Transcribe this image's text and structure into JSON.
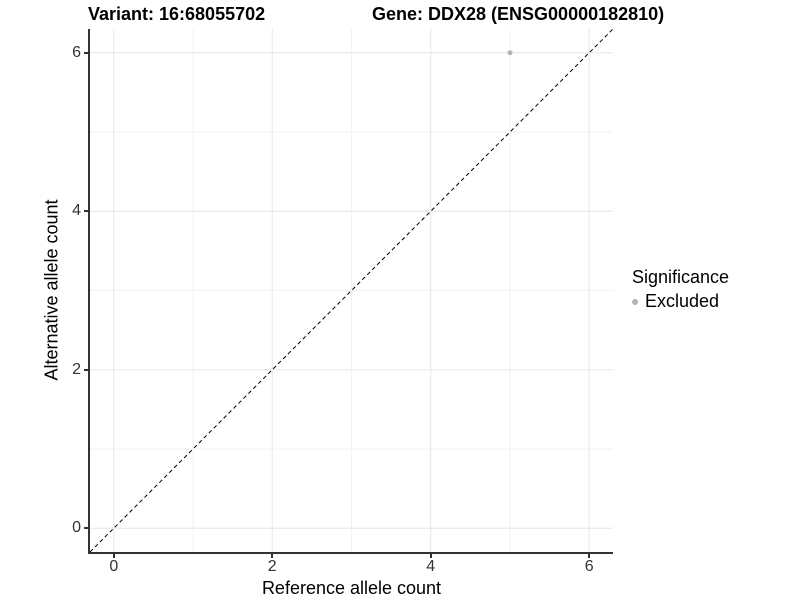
{
  "header": {
    "variant_title": "Variant: 16:68055702",
    "gene_title": "Gene: DDX28 (ENSG00000182810)"
  },
  "chart_data": {
    "type": "scatter",
    "xlabel": "Reference allele count",
    "ylabel": "Alternative allele count",
    "xlim": [
      -0.3,
      6.3
    ],
    "ylim": [
      -0.3,
      6.3
    ],
    "x_ticks": [
      0,
      2,
      4,
      6
    ],
    "y_ticks": [
      0,
      2,
      4,
      6
    ],
    "x_minor_ticks": [
      1,
      3,
      5
    ],
    "y_minor_ticks": [
      1,
      3,
      5
    ],
    "grid": "major and minor gridlines, light gray on white panel",
    "points": [
      {
        "x": 5,
        "y": 6,
        "series": "Excluded"
      }
    ],
    "reference_line": {
      "style": "dashed",
      "from": [
        -0.3,
        -0.3
      ],
      "to": [
        6.3,
        6.3
      ],
      "description": "y = x identity line"
    },
    "legend": {
      "title": "Significance",
      "position": "right",
      "entries": [
        {
          "label": "Excluded",
          "color": "#b4b4b4"
        }
      ]
    },
    "colors": {
      "point": "#b4b4b4",
      "grid_major": "#e6e6e6",
      "grid_minor": "#f2f2f2",
      "axis_line": "#333333",
      "reference_line": "#000000"
    }
  }
}
